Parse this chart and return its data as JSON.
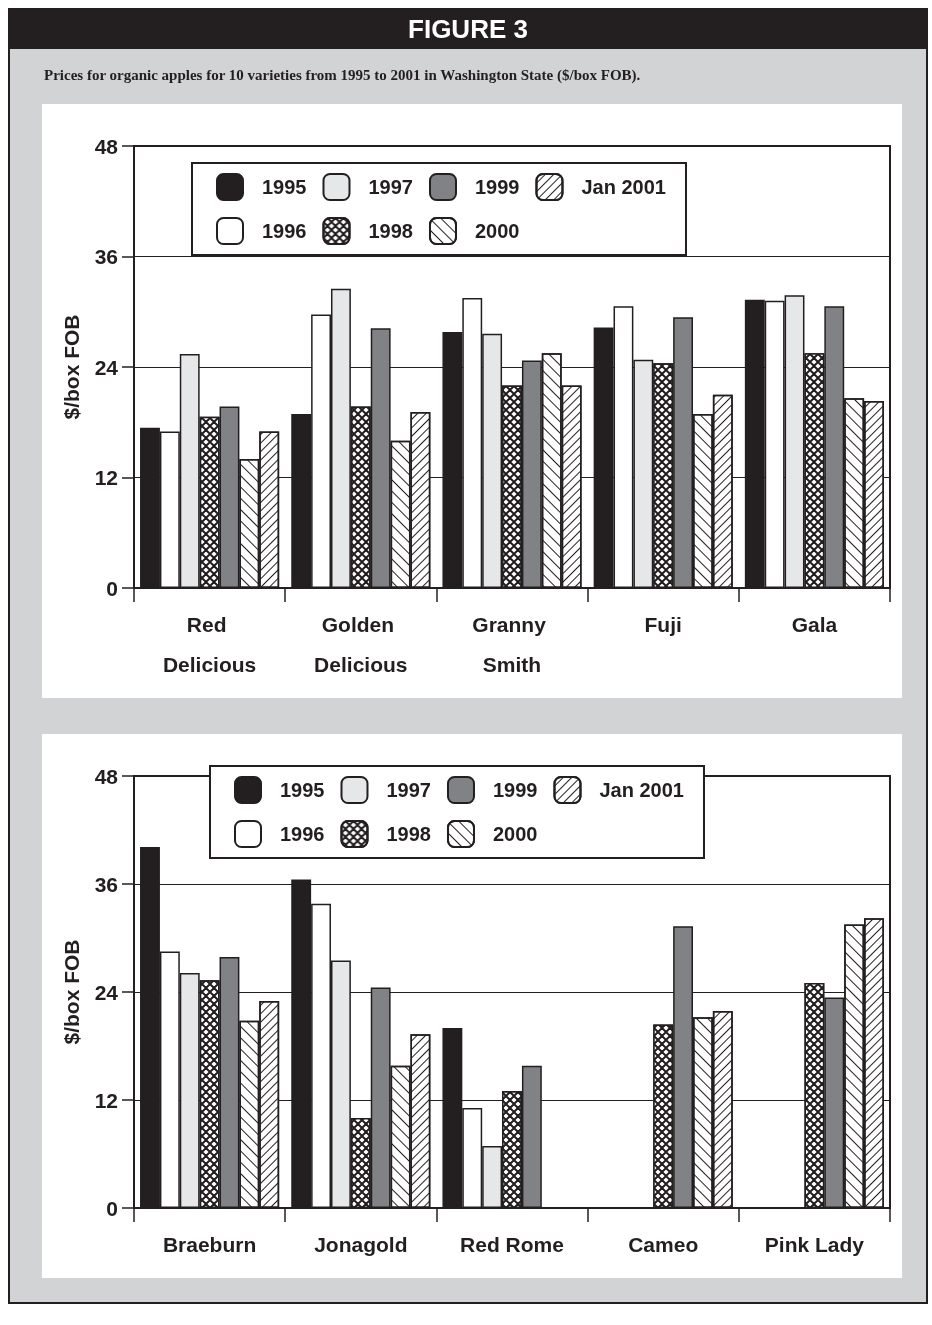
{
  "chart_data": [
    {
      "type": "bar",
      "title": "FIGURE 3",
      "subtitle": "Prices for organic apples for 10 varieties from 1995 to 2001 in Washington State ($/box FOB).",
      "ylabel": "$/box FOB",
      "categories": [
        "Red Delicious",
        "Golden Delicious",
        "Granny Smith",
        "Fuji",
        "Gala"
      ],
      "ylim": [
        0,
        48
      ],
      "yticks": [
        0,
        12,
        24,
        36,
        48
      ],
      "grid": "y",
      "legend": "top",
      "series": [
        {
          "name": "1995",
          "color": "#231f20",
          "values": [
            17.4,
            18.9,
            27.8,
            28.3,
            31.3
          ]
        },
        {
          "name": "1996",
          "color": "#ffffff",
          "values": [
            17.0,
            29.7,
            31.5,
            30.6,
            31.2
          ]
        },
        {
          "name": "1997",
          "color": "#e6e7e8",
          "values": [
            25.4,
            32.5,
            27.6,
            24.8,
            31.8
          ]
        },
        {
          "name": "1998",
          "color": "#ffffff",
          "values": [
            18.6,
            19.7,
            22.0,
            24.4,
            25.5
          ]
        },
        {
          "name": "1999",
          "color": "#808285",
          "values": [
            19.7,
            28.2,
            24.7,
            29.4,
            30.6
          ]
        },
        {
          "name": "2000",
          "color": "#ffffff",
          "values": [
            14.0,
            16.0,
            25.5,
            18.9,
            20.6
          ]
        },
        {
          "name": "Jan 2001",
          "color": "#ffffff",
          "values": [
            17.0,
            19.1,
            22.0,
            21.0,
            20.3
          ]
        }
      ]
    },
    {
      "type": "bar",
      "ylabel": "$/box FOB",
      "categories": [
        "Braeburn",
        "Jonagold",
        "Red Rome",
        "Cameo",
        "Pink Lady"
      ],
      "ylim": [
        0,
        48
      ],
      "yticks": [
        0,
        12,
        24,
        36,
        48
      ],
      "grid": "y",
      "legend": "top",
      "series": [
        {
          "name": "1995",
          "color": "#231f20",
          "values": [
            40.1,
            36.5,
            20.0,
            null,
            null
          ]
        },
        {
          "name": "1996",
          "color": "#ffffff",
          "values": [
            28.5,
            33.8,
            11.1,
            null,
            null
          ]
        },
        {
          "name": "1997",
          "color": "#e6e7e8",
          "values": [
            26.1,
            27.5,
            6.9,
            null,
            null
          ]
        },
        {
          "name": "1998",
          "color": "#ffffff",
          "values": [
            25.3,
            10.0,
            13.0,
            20.4,
            25.0
          ]
        },
        {
          "name": "1999",
          "color": "#808285",
          "values": [
            27.9,
            24.5,
            15.8,
            31.3,
            23.4
          ]
        },
        {
          "name": "2000",
          "color": "#ffffff",
          "values": [
            20.8,
            15.8,
            null,
            21.2,
            31.5
          ]
        },
        {
          "name": "Jan 2001",
          "color": "#ffffff",
          "values": [
            23.0,
            19.3,
            null,
            21.9,
            32.2
          ]
        }
      ]
    }
  ]
}
